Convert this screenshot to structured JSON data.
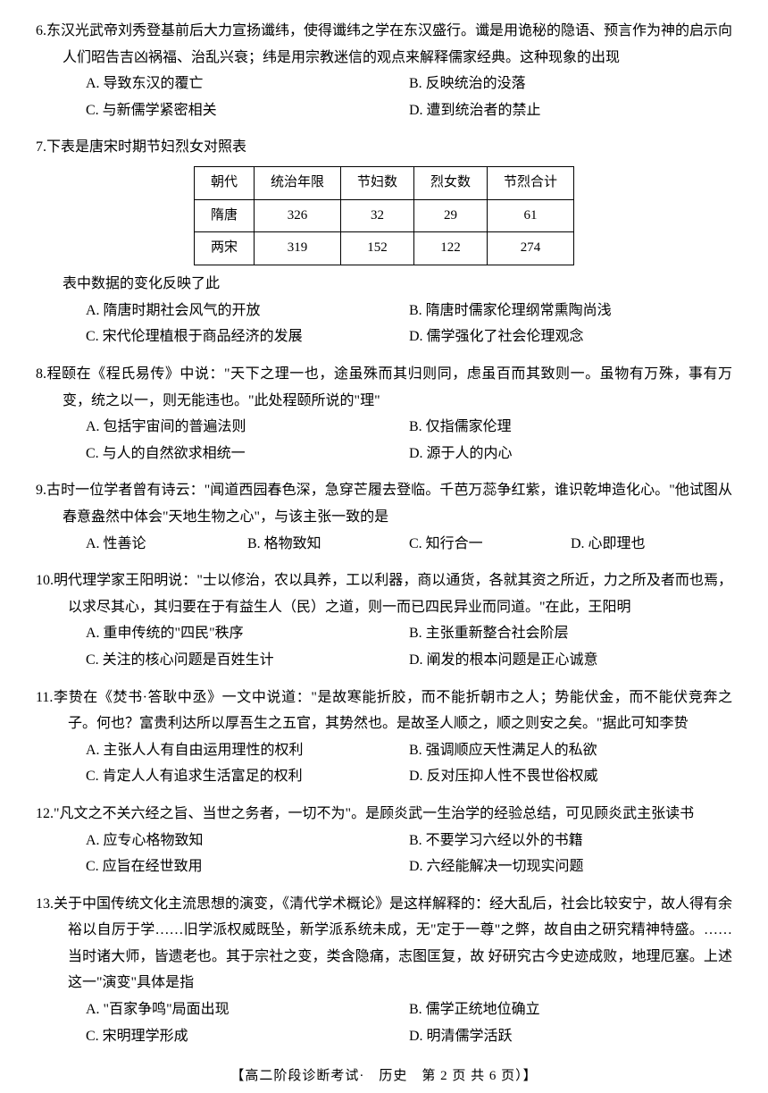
{
  "q6": {
    "num": "6.",
    "text": "东汉光武帝刘秀登基前后大力宣扬谶纬，使得谶纬之学在东汉盛行。谶是用诡秘的隐语、预言作为神的启示向人们昭告吉凶祸福、治乱兴衰；纬是用宗教迷信的观点来解释儒家经典。这种现象的出现",
    "A": "A. 导致东汉的覆亡",
    "B": "B. 反映统治的没落",
    "C": "C. 与新儒学紧密相关",
    "D": "D. 遭到统治者的禁止"
  },
  "q7": {
    "num": "7.",
    "text": "下表是唐宋时期节妇烈女对照表",
    "table": {
      "headers": [
        "朝代",
        "统治年限",
        "节妇数",
        "烈女数",
        "节烈合计"
      ],
      "rows": [
        [
          "隋唐",
          "326",
          "32",
          "29",
          "61"
        ],
        [
          "两宋",
          "319",
          "152",
          "122",
          "274"
        ]
      ]
    },
    "subtext": "表中数据的变化反映了此",
    "A": "A. 隋唐时期社会风气的开放",
    "B": "B. 隋唐时儒家伦理纲常熏陶尚浅",
    "C": "C. 宋代伦理植根于商品经济的发展",
    "D": "D. 儒学强化了社会伦理观念"
  },
  "q8": {
    "num": "8.",
    "text": "程颐在《程氏易传》中说：\"天下之理一也，途虽殊而其归则同，虑虽百而其致则一。虽物有万殊，事有万变，统之以一，则无能违也。\"此处程颐所说的\"理\"",
    "A": "A. 包括宇宙间的普遍法则",
    "B": "B. 仅指儒家伦理",
    "C": "C. 与人的自然欲求相统一",
    "D": "D. 源于人的内心"
  },
  "q9": {
    "num": "9.",
    "text": "古时一位学者曾有诗云：\"闻道西园春色深，急穿芒履去登临。千芭万蕊争红紫，谁识乾坤造化心。\"他试图从春意盎然中体会\"天地生物之心\"，与该主张一致的是",
    "A": "A. 性善论",
    "B": "B. 格物致知",
    "C": "C. 知行合一",
    "D": "D. 心即理也"
  },
  "q10": {
    "num": "10.",
    "text": "明代理学家王阳明说：\"士以修治，农以具养，工以利器，商以通货，各就其资之所近，力之所及者而也焉，以求尽其心，其归要在于有益生人（民）之道，则一而已四民异业而同道。\"在此，王阳明",
    "A": "A. 重申传统的\"四民\"秩序",
    "B": "B. 主张重新整合社会阶层",
    "C": "C. 关注的核心问题是百姓生计",
    "D": "D. 阐发的根本问题是正心诚意"
  },
  "q11": {
    "num": "11.",
    "text": "李贽在《焚书·答耿中丞》一文中说道：\"是故寒能折胶，而不能折朝市之人；势能伏金，而不能伏竞奔之子。何也？富贵利达所以厚吾生之五官，其势然也。是故圣人顺之，顺之则安之矣。\"据此可知李贽",
    "A": "A. 主张人人有自由运用理性的权利",
    "B": "B. 强调顺应天性满足人的私欲",
    "C": "C. 肯定人人有追求生活富足的权利",
    "D": "D. 反对压抑人性不畏世俗权威"
  },
  "q12": {
    "num": "12.",
    "text": "\"凡文之不关六经之旨、当世之务者，一切不为\"。是顾炎武一生治学的经验总结，可见顾炎武主张读书",
    "A": "A. 应专心格物致知",
    "B": "B. 不要学习六经以外的书籍",
    "C": "C. 应旨在经世致用",
    "D": "D. 六经能解决一切现实问题"
  },
  "q13": {
    "num": "13.",
    "text": "关于中国传统文化主流思想的演变，《清代学术概论》是这样解释的：经大乱后，社会比较安宁，故人得有余裕以自厉于学……旧学派权威既坠，新学派系统未成，无\"定于一尊\"之弊，故自由之研究精神特盛。……当时诸大师，皆遗老也。其于宗社之变，类含隐痛，志图匡复，故 好研究古今史迹成败，地理厄塞。上述这一\"演变\"具体是指",
    "A": "A. \"百家争鸣\"局面出现",
    "B": "B. 儒学正统地位确立",
    "C": "C. 宋明理学形成",
    "D": "D. 明清儒学活跃"
  },
  "footer": "【高二阶段诊断考试·　历史　第 2 页  共 6 页）】"
}
